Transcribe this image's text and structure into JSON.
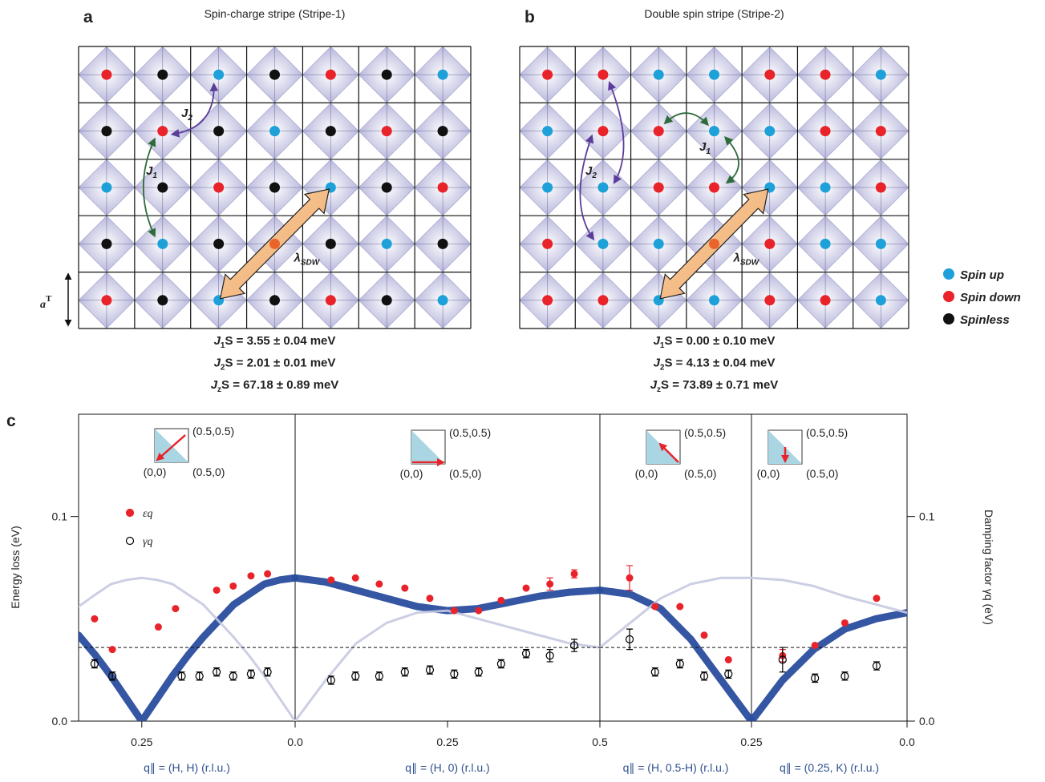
{
  "diagram": {
    "panels": [
      {
        "label": "a",
        "title": "Spin-charge stripe (Stripe-1)",
        "annotations": [
          {
            "symbol": "J",
            "sub": "1"
          },
          {
            "symbol": "J",
            "sub": "2"
          },
          {
            "symbol": "λ",
            "sub": "SDW"
          }
        ],
        "lattice_constant": {
          "symbol": "a",
          "sup": "T"
        },
        "parameters": [
          {
            "symbol": "J",
            "sub": "1",
            "text": "S = 3.55 ± 0.04 meV"
          },
          {
            "symbol": "J",
            "sub": "2",
            "text": "S = 2.01 ± 0.01 meV"
          },
          {
            "symbol": "J",
            "sub": "z",
            "text": "S = 67.18 ± 0.89 meV"
          }
        ]
      },
      {
        "label": "b",
        "title": "Double spin stripe (Stripe-2)",
        "annotations": [
          {
            "symbol": "J",
            "sub": "1"
          },
          {
            "symbol": "J",
            "sub": "2"
          },
          {
            "symbol": "λ",
            "sub": "SDW"
          }
        ],
        "parameters": [
          {
            "symbol": "J",
            "sub": "1",
            "text": "S = 0.00 ± 0.10 meV"
          },
          {
            "symbol": "J",
            "sub": "2",
            "text": "S = 4.13 ± 0.04 meV"
          },
          {
            "symbol": "J",
            "sub": "z",
            "text": "S = 73.89 ± 0.71 meV"
          }
        ]
      }
    ],
    "legend": [
      "Spin up",
      "Spin down",
      "Spinless"
    ]
  },
  "chart_data": [
    {
      "type": "scatter",
      "label": "c",
      "ylabel": "Energy loss (eV)",
      "y2label": "Damping factor γq (eV)",
      "xlabel": "q∥ = (H, H) (r.l.u.)",
      "xlim": [
        0.353,
        0
      ],
      "xticks": [
        0.25
      ],
      "ylim": [
        0,
        0.15
      ],
      "yticks": [
        {
          "value": 0,
          "label": "0.0"
        },
        0.1
      ],
      "y2lim": [
        0,
        0.15
      ],
      "y2ticks": [
        {
          "value": 0,
          "label": "0.0"
        },
        0.1
      ],
      "hline": 0.036,
      "inset_labels": [
        "(0.5,0.5)",
        "(0,0)",
        "(0.5,0)"
      ],
      "series": [
        {
          "name": "εq",
          "color": "#e8232a",
          "x": [
            0.327,
            0.298,
            0.223,
            0.195,
            0.128,
            0.101,
            0.072,
            0.045
          ],
          "values": [
            0.05,
            0.035,
            0.046,
            0.055,
            0.064,
            0.066,
            0.071,
            0.072
          ]
        },
        {
          "name": "γq",
          "color": "#000000",
          "x": [
            0.327,
            0.298,
            0.185,
            0.156,
            0.128,
            0.101,
            0.072,
            0.045
          ],
          "values": [
            0.028,
            0.022,
            0.022,
            0.022,
            0.024,
            0.022,
            0.023,
            0.024
          ],
          "errors": [
            0.002,
            0.002,
            0.002,
            0.002,
            0.002,
            0.002,
            0.002,
            0.002
          ]
        },
        {
          "type": "line",
          "color": "#2a4d9e",
          "x": [
            0.353,
            0.325,
            0.3,
            0.275,
            0.25,
            0.225,
            0.2,
            0.175,
            0.15,
            0.125,
            0.1,
            0.075,
            0.05,
            0.025,
            0
          ],
          "values": [
            0.042,
            0.032,
            0.022,
            0.011,
            0,
            0.011,
            0.022,
            0.032,
            0.041,
            0.049,
            0.057,
            0.062,
            0.067,
            0.069,
            0.07
          ]
        },
        {
          "type": "line",
          "color": "#c6c9e1",
          "x": [
            0.353,
            0.325,
            0.3,
            0.275,
            0.25,
            0.225,
            0.2,
            0.175,
            0.15,
            0.125,
            0.1,
            0.075,
            0.05,
            0.025,
            0
          ],
          "values": [
            0.056,
            0.062,
            0.067,
            0.069,
            0.07,
            0.069,
            0.067,
            0.062,
            0.057,
            0.049,
            0.041,
            0.032,
            0.022,
            0.011,
            0
          ]
        }
      ]
    },
    {
      "type": "scatter",
      "xlabel": "q∥ = (H, 0) (r.l.u.)",
      "xlim": [
        0,
        0.5
      ],
      "xticks": [
        {
          "value": 0,
          "label": "0.0"
        },
        0.25,
        {
          "value": 0.5,
          "label": "0.5"
        }
      ],
      "ylim": [
        0,
        0.15
      ],
      "hline": 0.036,
      "inset_labels": [
        "(0.5,0.5)",
        "(0,0)",
        "(0.5,0)"
      ],
      "series": [
        {
          "color": "#e8232a",
          "x": [
            0.059,
            0.099,
            0.138,
            0.18,
            0.221,
            0.261,
            0.301,
            0.338,
            0.379,
            0.418,
            0.458
          ],
          "values": [
            0.069,
            0.07,
            0.067,
            0.065,
            0.06,
            0.054,
            0.054,
            0.059,
            0.065,
            0.067,
            0.072
          ],
          "errors": [
            null,
            null,
            null,
            null,
            null,
            null,
            null,
            null,
            null,
            0.003,
            0.002
          ]
        },
        {
          "color": "#000000",
          "x": [
            0.059,
            0.099,
            0.138,
            0.18,
            0.221,
            0.261,
            0.301,
            0.338,
            0.379,
            0.418,
            0.458
          ],
          "values": [
            0.02,
            0.022,
            0.022,
            0.024,
            0.025,
            0.023,
            0.024,
            0.028,
            0.033,
            0.032,
            0.037
          ],
          "errors": [
            0.002,
            0.002,
            0.002,
            0.002,
            0.002,
            0.002,
            0.002,
            0.002,
            0.002,
            0.003,
            0.003
          ]
        },
        {
          "type": "line",
          "color": "#2a4d9e",
          "x": [
            0,
            0.05,
            0.1,
            0.15,
            0.2,
            0.25,
            0.3,
            0.35,
            0.4,
            0.45,
            0.5
          ],
          "values": [
            0.07,
            0.068,
            0.064,
            0.06,
            0.056,
            0.054,
            0.055,
            0.058,
            0.061,
            0.063,
            0.064
          ]
        },
        {
          "type": "line",
          "color": "#c6c9e1",
          "x": [
            0,
            0.05,
            0.1,
            0.15,
            0.2,
            0.25,
            0.3,
            0.35,
            0.4,
            0.45,
            0.5
          ],
          "values": [
            0,
            0.02,
            0.038,
            0.048,
            0.053,
            0.054,
            0.05,
            0.046,
            0.042,
            0.038,
            0.036
          ]
        }
      ]
    },
    {
      "type": "scatter",
      "xlabel": "q∥ = (H, 0.5-H) (r.l.u.)",
      "xlim": [
        0.5,
        0.25
      ],
      "xticks": [
        0.25
      ],
      "ylim": [
        0,
        0.15
      ],
      "hline": 0.036,
      "inset_labels": [
        "(0.5,0.5)",
        "(0,0)",
        "(0.5,0)"
      ],
      "series": [
        {
          "color": "#e8232a",
          "x": [
            0.451,
            0.409,
            0.368,
            0.328,
            0.288
          ],
          "values": [
            0.07,
            0.056,
            0.056,
            0.042,
            0.03
          ],
          "errors": [
            0.006,
            null,
            null,
            null,
            null
          ]
        },
        {
          "color": "#000000",
          "x": [
            0.451,
            0.409,
            0.368,
            0.328,
            0.288
          ],
          "values": [
            0.04,
            0.024,
            0.028,
            0.022,
            0.023
          ],
          "errors": [
            0.005,
            0.002,
            0.002,
            0.002,
            0.002
          ]
        },
        {
          "type": "line",
          "color": "#2a4d9e",
          "x": [
            0.5,
            0.45,
            0.4,
            0.35,
            0.3,
            0.25
          ],
          "values": [
            0.064,
            0.062,
            0.055,
            0.04,
            0.02,
            0
          ]
        },
        {
          "type": "line",
          "color": "#c6c9e1",
          "x": [
            0.5,
            0.45,
            0.4,
            0.35,
            0.3,
            0.25
          ],
          "values": [
            0.036,
            0.048,
            0.06,
            0.067,
            0.07,
            0.07
          ]
        }
      ]
    },
    {
      "type": "scatter",
      "xlabel": "q∥ = (0.25, K) (r.l.u.)",
      "xlim": [
        0.25,
        0
      ],
      "xticks": [
        {
          "value": 0,
          "label": "0.0"
        }
      ],
      "ylim": [
        0,
        0.15
      ],
      "hline": 0.036,
      "inset_labels": [
        "(0.5,0.5)",
        "(0,0)",
        "(0.5,0)"
      ],
      "series": [
        {
          "color": "#e8232a",
          "x": [
            0.2,
            0.148,
            0.1,
            0.049
          ],
          "values": [
            0.032,
            0.037,
            0.048,
            0.06
          ],
          "errors": [
            0.003,
            null,
            null,
            null
          ]
        },
        {
          "color": "#000000",
          "x": [
            0.2,
            0.148,
            0.1,
            0.049
          ],
          "values": [
            0.03,
            0.021,
            0.022,
            0.027
          ],
          "errors": [
            0.006,
            0.002,
            0.002,
            0.002
          ]
        },
        {
          "type": "line",
          "color": "#2a4d9e",
          "x": [
            0.25,
            0.2,
            0.15,
            0.1,
            0.05,
            0
          ],
          "values": [
            0,
            0.02,
            0.035,
            0.045,
            0.05,
            0.053
          ]
        },
        {
          "type": "line",
          "color": "#c6c9e1",
          "x": [
            0.25,
            0.2,
            0.15,
            0.1,
            0.05,
            0
          ],
          "values": [
            0.07,
            0.069,
            0.066,
            0.061,
            0.057,
            0.053
          ]
        }
      ]
    }
  ]
}
